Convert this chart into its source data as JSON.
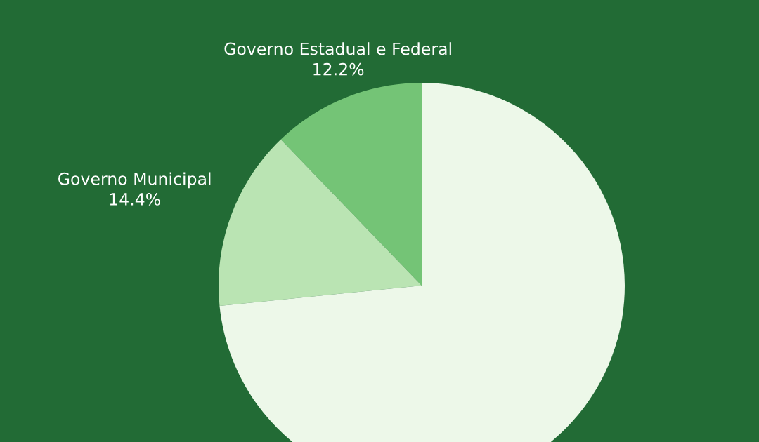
{
  "chart_data": {
    "type": "pie",
    "categories": [
      "Governo Estadual e Federal",
      "Governo Municipal",
      null
    ],
    "values": [
      12.2,
      14.4,
      73.4
    ],
    "value_labels": [
      "12.2%",
      "14.4%",
      null
    ],
    "colors": [
      "#74c476",
      "#bae4b3",
      "#edf8e9"
    ]
  }
}
